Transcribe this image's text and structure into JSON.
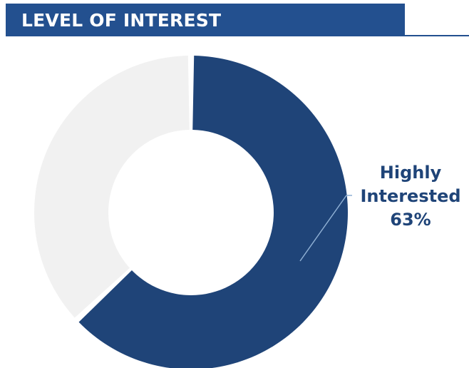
{
  "header": {
    "title": "LEVEL OF INTEREST"
  },
  "colors": {
    "accent": "#1f4478",
    "title_bar": "#23508f",
    "secondary_slice": "#f1f1f1",
    "background": "#ffffff"
  },
  "chart_data": {
    "type": "pie",
    "variant": "donut",
    "title": "LEVEL OF INTEREST",
    "series": [
      {
        "values": [
          63,
          37
        ],
        "colors": [
          "#1f4478",
          "#f1f1f1"
        ]
      }
    ],
    "slices": [
      {
        "label": "Highly Interested",
        "value": 63,
        "value_label": "63%",
        "color": "#1f4478"
      },
      {
        "label": "",
        "value": 37,
        "value_label": "",
        "color": "#f1f1f1"
      }
    ],
    "data_labels": [
      {
        "line1": "Highly",
        "line2": "Interested",
        "value": "63%"
      }
    ],
    "legend": "none"
  }
}
